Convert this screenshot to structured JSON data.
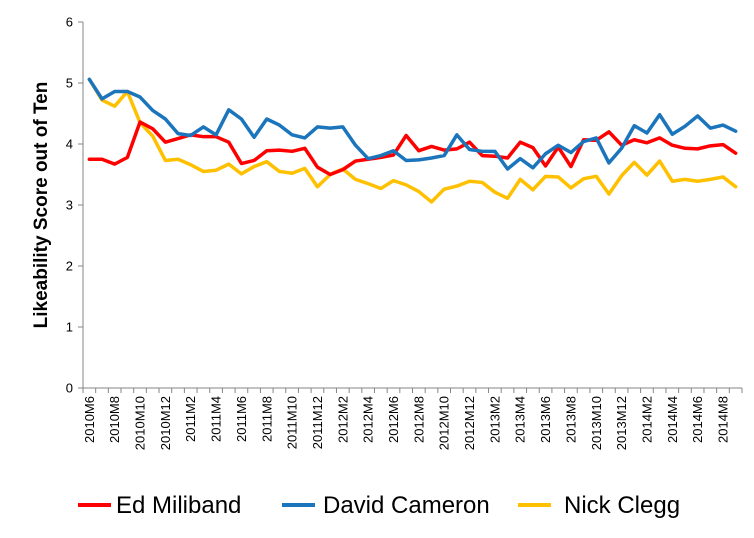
{
  "chart_data": {
    "type": "line",
    "ylabel": "Likeability Score out of Ten",
    "xlabel": "",
    "ylim": [
      0,
      6
    ],
    "yticks": [
      0,
      1,
      2,
      3,
      4,
      5,
      6
    ],
    "grid": false,
    "legend_position": "bottom",
    "categories": [
      "2010M6",
      "2010M7",
      "2010M8",
      "2010M9",
      "2010M10",
      "2010M11",
      "2010M12",
      "2011M1",
      "2011M2",
      "2011M3",
      "2011M4",
      "2011M5",
      "2011M6",
      "2011M7",
      "2011M8",
      "2011M9",
      "2011M10",
      "2011M11",
      "2011M12",
      "2012M1",
      "2012M2",
      "2012M3",
      "2012M4",
      "2012M5",
      "2012M6",
      "2012M7",
      "2012M8",
      "2012M9",
      "2012M10",
      "2012M11",
      "2012M12",
      "2013M1",
      "2013M2",
      "2013M3",
      "2013M4",
      "2013M5",
      "2013M6",
      "2013M7",
      "2013M8",
      "2013M9",
      "2013M10",
      "2013M11",
      "2013M12",
      "2014M1",
      "2014M2",
      "2014M3",
      "2014M4",
      "2014M5",
      "2014M6",
      "2014M7",
      "2014M8",
      "2014M9"
    ],
    "tick_labels": [
      "2010M6",
      "2010M8",
      "2010M10",
      "2010M12",
      "2011M2",
      "2011M4",
      "2011M6",
      "2011M8",
      "2011M10",
      "2011M12",
      "2012M2",
      "2012M4",
      "2012M6",
      "2012M8",
      "2012M10",
      "2012M12",
      "2013M2",
      "2013M4",
      "2013M6",
      "2013M8",
      "2013M10",
      "2013M12",
      "2014M2",
      "2014M4",
      "2014M6",
      "2014M8"
    ],
    "series": [
      {
        "name": "Ed Miliband",
        "color": "#ff0000",
        "values": [
          3.75,
          3.75,
          3.67,
          3.78,
          4.36,
          4.25,
          4.03,
          4.09,
          4.15,
          4.12,
          4.12,
          4.03,
          3.68,
          3.73,
          3.89,
          3.9,
          3.88,
          3.93,
          3.62,
          3.5,
          3.58,
          3.72,
          3.75,
          3.78,
          3.82,
          4.14,
          3.89,
          3.96,
          3.9,
          3.92,
          4.03,
          3.81,
          3.8,
          3.77,
          4.03,
          3.94,
          3.64,
          3.95,
          3.63,
          4.07,
          4.06,
          4.2,
          3.98,
          4.07,
          4.02,
          4.1,
          3.98,
          3.93,
          3.92,
          3.97,
          3.99,
          3.85
        ]
      },
      {
        "name": "David Cameron",
        "color": "#1b75bc",
        "values": [
          5.06,
          4.74,
          4.86,
          4.86,
          4.77,
          4.55,
          4.41,
          4.17,
          4.14,
          4.28,
          4.15,
          4.56,
          4.41,
          4.11,
          4.41,
          4.31,
          4.15,
          4.1,
          4.28,
          4.26,
          4.28,
          3.98,
          3.76,
          3.81,
          3.89,
          3.73,
          3.74,
          3.77,
          3.81,
          4.15,
          3.91,
          3.88,
          3.88,
          3.59,
          3.76,
          3.61,
          3.84,
          3.98,
          3.86,
          4.04,
          4.1,
          3.69,
          3.93,
          4.3,
          4.18,
          4.48,
          4.16,
          4.29,
          4.46,
          4.26,
          4.31,
          4.21
        ]
      },
      {
        "name": "Nick Clegg",
        "color": "#ffc000",
        "values": [
          5.06,
          4.72,
          4.62,
          4.86,
          4.35,
          4.13,
          3.73,
          3.75,
          3.66,
          3.55,
          3.57,
          3.67,
          3.51,
          3.63,
          3.71,
          3.55,
          3.52,
          3.6,
          3.3,
          3.5,
          3.59,
          3.42,
          3.35,
          3.27,
          3.4,
          3.33,
          3.22,
          3.05,
          3.26,
          3.31,
          3.39,
          3.37,
          3.21,
          3.11,
          3.42,
          3.25,
          3.47,
          3.46,
          3.28,
          3.43,
          3.47,
          3.18,
          3.48,
          3.7,
          3.49,
          3.72,
          3.39,
          3.42,
          3.39,
          3.42,
          3.46,
          3.3
        ]
      }
    ]
  }
}
